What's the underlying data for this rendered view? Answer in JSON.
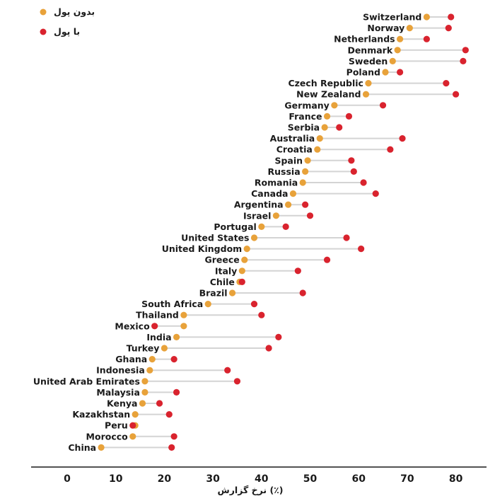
{
  "chart_data": {
    "type": "dumbbell",
    "title": "",
    "xlabel": "نرخ گزارش (٪)",
    "ylabel": "",
    "xlim": [
      -5,
      82
    ],
    "xticks": [
      0,
      10,
      20,
      30,
      40,
      50,
      60,
      70,
      80
    ],
    "legend_position": "top-left",
    "series": [
      {
        "name": "بدون پول",
        "key": "no_money",
        "color": "#e8a23a"
      },
      {
        "name": "با پول",
        "key": "money",
        "color": "#d9232e"
      }
    ],
    "rows": [
      {
        "country": "Switzerland",
        "no_money": 74,
        "money": 79
      },
      {
        "country": "Norway",
        "no_money": 70.5,
        "money": 78.5
      },
      {
        "country": "Netherlands",
        "no_money": 68.5,
        "money": 74
      },
      {
        "country": "Denmark",
        "no_money": 68,
        "money": 82
      },
      {
        "country": "Sweden",
        "no_money": 67,
        "money": 81.5
      },
      {
        "country": "Poland",
        "no_money": 65.5,
        "money": 68.5
      },
      {
        "country": "Czech Republic",
        "no_money": 62,
        "money": 78
      },
      {
        "country": "New Zealand",
        "no_money": 61.5,
        "money": 80
      },
      {
        "country": "Germany",
        "no_money": 55,
        "money": 65
      },
      {
        "country": "France",
        "no_money": 53.5,
        "money": 58
      },
      {
        "country": "Serbia",
        "no_money": 53,
        "money": 56
      },
      {
        "country": "Australia",
        "no_money": 52,
        "money": 69
      },
      {
        "country": "Croatia",
        "no_money": 51.5,
        "money": 66.5
      },
      {
        "country": "Spain",
        "no_money": 49.5,
        "money": 58.5
      },
      {
        "country": "Russia",
        "no_money": 49,
        "money": 59
      },
      {
        "country": "Romania",
        "no_money": 48.5,
        "money": 61
      },
      {
        "country": "Canada",
        "no_money": 46.5,
        "money": 63.5
      },
      {
        "country": "Argentina",
        "no_money": 45.5,
        "money": 49
      },
      {
        "country": "Israel",
        "no_money": 43,
        "money": 50
      },
      {
        "country": "Portugal",
        "no_money": 40,
        "money": 45
      },
      {
        "country": "United States",
        "no_money": 38.5,
        "money": 57.5
      },
      {
        "country": "United Kingdom",
        "no_money": 37,
        "money": 60.5
      },
      {
        "country": "Greece",
        "no_money": 36.5,
        "money": 53.5
      },
      {
        "country": "Italy",
        "no_money": 36,
        "money": 47.5
      },
      {
        "country": "Chile",
        "no_money": 35.5,
        "money": 36
      },
      {
        "country": "Brazil",
        "no_money": 34,
        "money": 48.5
      },
      {
        "country": "South Africa",
        "no_money": 29,
        "money": 38.5
      },
      {
        "country": "Thailand",
        "no_money": 24,
        "money": 40
      },
      {
        "country": "Mexico",
        "no_money": 24,
        "money": 18
      },
      {
        "country": "India",
        "no_money": 22.5,
        "money": 43.5
      },
      {
        "country": "Turkey",
        "no_money": 20,
        "money": 41.5
      },
      {
        "country": "Ghana",
        "no_money": 17.5,
        "money": 22
      },
      {
        "country": "Indonesia",
        "no_money": 17,
        "money": 33
      },
      {
        "country": "United Arab Emirates",
        "no_money": 16,
        "money": 35
      },
      {
        "country": "Malaysia",
        "no_money": 16,
        "money": 22.5
      },
      {
        "country": "Kenya",
        "no_money": 15.5,
        "money": 19
      },
      {
        "country": "Kazakhstan",
        "no_money": 14,
        "money": 21
      },
      {
        "country": "Peru",
        "no_money": 14,
        "money": 13.5
      },
      {
        "country": "Morocco",
        "no_money": 13.5,
        "money": 22
      },
      {
        "country": "China",
        "no_money": 7,
        "money": 21.5
      }
    ]
  }
}
